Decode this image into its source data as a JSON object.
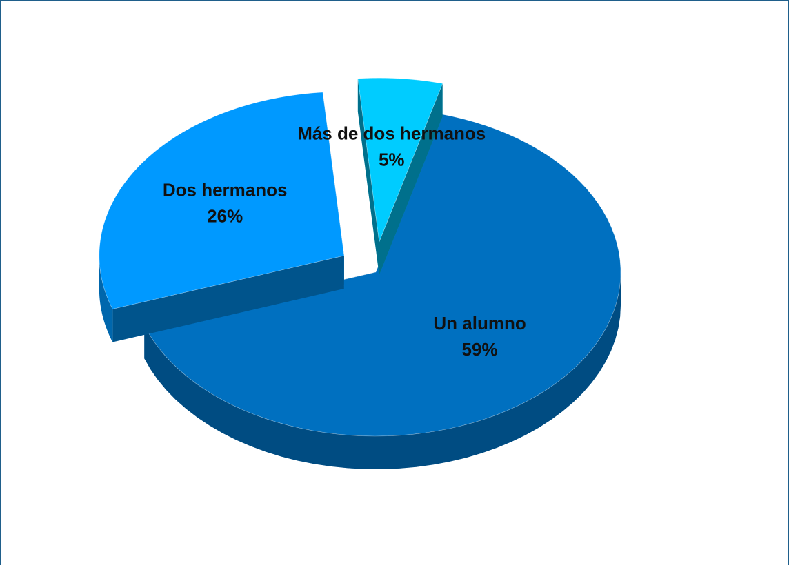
{
  "chart_data": {
    "type": "pie",
    "categories": [
      "Un alumno",
      "Dos hermanos",
      "Más de dos hermanos"
    ],
    "values": [
      59,
      26,
      5
    ],
    "value_labels": [
      "59%",
      "26%",
      "5%"
    ],
    "colors": [
      "#0070c0",
      "#0099ff",
      "#00ccff"
    ],
    "exploded": [
      false,
      true,
      true
    ]
  }
}
